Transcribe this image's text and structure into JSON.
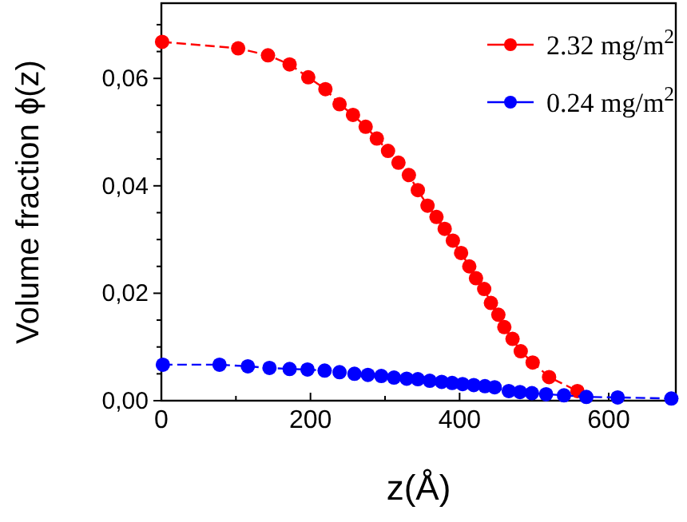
{
  "chart_data": {
    "type": "line",
    "xlabel": "z(Å)",
    "ylabel": "Volume fraction ϕ(z)",
    "xlim": [
      0,
      690
    ],
    "ylim": [
      0,
      0.074
    ],
    "xticks": [
      0,
      {
        "value": 100,
        "label": null
      },
      200,
      {
        "value": 300,
        "label": null
      },
      400,
      {
        "value": 500,
        "label": null
      },
      600
    ],
    "yticks": [
      {
        "value": 0,
        "label": "0,00"
      },
      {
        "value": 0.005,
        "label": null
      },
      {
        "value": 0.01,
        "label": null
      },
      {
        "value": 0.015,
        "label": null
      },
      {
        "value": 0.02,
        "label": "0,02"
      },
      {
        "value": 0.025,
        "label": null
      },
      {
        "value": 0.03,
        "label": null
      },
      {
        "value": 0.035,
        "label": null
      },
      {
        "value": 0.04,
        "label": "0,04"
      },
      {
        "value": 0.045,
        "label": null
      },
      {
        "value": 0.05,
        "label": null
      },
      {
        "value": 0.055,
        "label": null
      },
      {
        "value": 0.06,
        "label": "0,06"
      },
      {
        "value": 0.065,
        "label": null
      },
      {
        "value": 0.07,
        "label": null
      }
    ],
    "legend": "top right",
    "marker": "circle",
    "line_style": "dashed",
    "grid": false,
    "series": [
      {
        "name": "2.32 mg/m$^{2}$",
        "color": "#ff0000",
        "x": [
          1,
          103,
          143,
          172,
          197,
          220,
          239,
          257,
          274,
          289,
          304,
          318,
          332,
          344,
          357,
          369,
          380,
          391,
          402,
          413,
          422,
          433,
          442,
          452,
          460,
          471,
          482,
          498,
          520,
          558
        ],
        "values": [
          0.0668,
          0.0656,
          0.0643,
          0.0626,
          0.0602,
          0.058,
          0.0552,
          0.0532,
          0.051,
          0.0488,
          0.0465,
          0.0443,
          0.042,
          0.0392,
          0.0363,
          0.0342,
          0.032,
          0.0298,
          0.0275,
          0.025,
          0.0228,
          0.0208,
          0.0182,
          0.016,
          0.0137,
          0.0115,
          0.0092,
          0.0071,
          0.0044,
          0.0018
        ]
      },
      {
        "name": "0.24 mg/m$^{2}$",
        "color": "#0000ff",
        "x": [
          2,
          78,
          116,
          145,
          172,
          196,
          219,
          239,
          259,
          277,
          295,
          312,
          329,
          344,
          360,
          376,
          390,
          404,
          419,
          434,
          447,
          460,
          466,
          481,
          497,
          516,
          540,
          570,
          612,
          684
        ],
        "values": [
          0.0067,
          0.0067,
          0.0064,
          0.0061,
          0.0059,
          0.0058,
          0.0056,
          0.0053,
          0.005,
          0.0048,
          0.0046,
          0.0043,
          0.0041,
          0.004,
          0.0037,
          0.0035,
          0.0033,
          0.0031,
          0.0029,
          0.0027,
          0.0025,
          null,
          0.0018,
          0.0016,
          0.0014,
          0.0012,
          0.001,
          0.0007,
          0.0006,
          0.0004
        ]
      }
    ]
  }
}
